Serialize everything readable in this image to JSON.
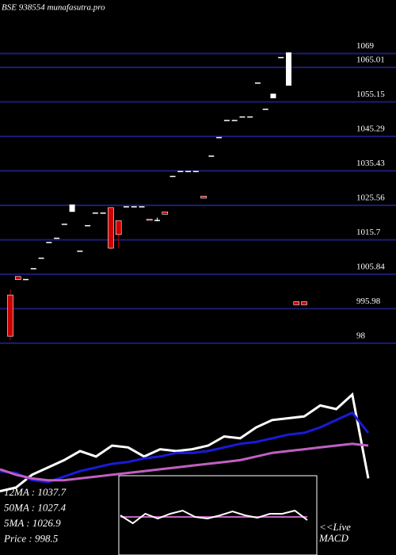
{
  "chart_data": [
    {
      "type": "candlestick",
      "title": "BSE 938554  munafasutra.pro",
      "open": [
        999.9,
        1005.2,
        1004.5,
        1007.6,
        1010.6,
        1015.1,
        1016.3,
        1020.3,
        1023.7,
        1012.6,
        1019.9,
        1023.5,
        1023.5,
        1024.9,
        1021.2,
        1025.3,
        1025.3,
        1025.3,
        1021.6,
        1021.4,
        1023.7,
        1034.0,
        1035.4,
        1035.4,
        1035.4,
        1028.2,
        1039.8,
        1045.1,
        1050.0,
        1050.0,
        1051.0,
        1051.0,
        1060.7,
        1053.2,
        1056.2,
        1068.0,
        1059.8,
        998.0,
        998.0
      ],
      "high": [
        1001.5,
        1005.2,
        1004.5,
        1007.6,
        1010.6,
        1015.1,
        1016.3,
        1020.3,
        1025.8,
        1012.6,
        1019.9,
        1023.5,
        1023.5,
        1025.0,
        1021.2,
        1025.3,
        1025.3,
        1025.3,
        1021.6,
        1022.0,
        1023.7,
        1034.0,
        1035.4,
        1035.4,
        1035.4,
        1028.2,
        1039.8,
        1045.1,
        1050.0,
        1050.0,
        1051.0,
        1051.0,
        1060.7,
        1053.2,
        1057.5,
        1068.0,
        1069.3,
        998.0,
        998.0
      ],
      "low": [
        987.0,
        1004.3,
        1004.5,
        1007.6,
        1010.6,
        1015.1,
        1016.3,
        1020.3,
        1023.7,
        1012.6,
        1019.9,
        1023.5,
        1023.5,
        1012.8,
        1013.3,
        1025.3,
        1025.3,
        1025.3,
        1021.3,
        1021.0,
        1023.0,
        1034.0,
        1035.4,
        1035.4,
        1035.4,
        1027.6,
        1039.8,
        1045.1,
        1050.0,
        1050.0,
        1051.0,
        1051.0,
        1060.7,
        1053.2,
        1056.2,
        1068.0,
        1059.8,
        997.1,
        997.1
      ],
      "close": [
        988.1,
        1004.3,
        1004.5,
        1007.6,
        1010.6,
        1015.1,
        1016.3,
        1020.3,
        1025.8,
        1012.6,
        1019.9,
        1023.5,
        1023.5,
        1013.3,
        1017.2,
        1025.3,
        1025.3,
        1025.3,
        1021.3,
        1021.4,
        1023.0,
        1034.0,
        1035.4,
        1035.4,
        1035.4,
        1027.6,
        1039.8,
        1045.1,
        1050.0,
        1050.0,
        1051.0,
        1051.0,
        1060.7,
        1053.2,
        1057.5,
        1068.0,
        1069.3,
        997.1,
        997.1
      ],
      "ylim": [
        984.5,
        1084.3
      ],
      "yticks": [
        1069,
        1065.01,
        1055.15,
        1045.29,
        1035.43,
        1025.56,
        1015.7,
        1005.84,
        995.98,
        {
          "value": 986.12,
          "label": "98"
        }
      ],
      "grid": true,
      "grid_color": "#1c1c78",
      "up_color": "#ffffff",
      "down_color": "#cc0000"
    },
    {
      "type": "line",
      "ylim": [
        0,
        100
      ],
      "series": [
        {
          "color": "#ffffff",
          "values": [
            35,
            37,
            44,
            48,
            52,
            57,
            54,
            60,
            59,
            54,
            58,
            57,
            58,
            60,
            65,
            64,
            70,
            74,
            75,
            76,
            82,
            80,
            88,
            42
          ]
        },
        {
          "color": "#1a1ad8",
          "values": [
            46,
            45,
            41,
            40,
            43,
            46,
            48,
            50,
            51,
            53,
            54,
            56,
            56,
            57,
            59,
            61,
            62,
            64,
            66,
            67,
            70,
            74,
            78,
            67
          ]
        },
        {
          "color": "#c060c0",
          "values": [
            47,
            44,
            42,
            41,
            41,
            42,
            43,
            44,
            45,
            46,
            47,
            48,
            49,
            50,
            51,
            52,
            54,
            56,
            57,
            58,
            59,
            60,
            61,
            60
          ]
        }
      ],
      "annotations": [
        "12MA : 1037.7",
        "50MA : 1027.4",
        "5MA : 1026.9",
        "Price   : 998.5"
      ]
    },
    {
      "type": "line",
      "ylim": [
        0,
        100
      ],
      "series": [
        {
          "color": "#c060c0",
          "values": [
            48,
            48,
            48,
            48,
            48,
            48,
            48,
            48,
            48,
            48,
            48,
            48,
            48,
            48,
            48,
            48
          ]
        },
        {
          "color": "#ffffff",
          "values": [
            50,
            40,
            52,
            46,
            52,
            56,
            48,
            46,
            50,
            55,
            50,
            47,
            52,
            52,
            56,
            44
          ]
        }
      ],
      "annotations": [
        "<<Live",
        "MACD"
      ]
    }
  ]
}
